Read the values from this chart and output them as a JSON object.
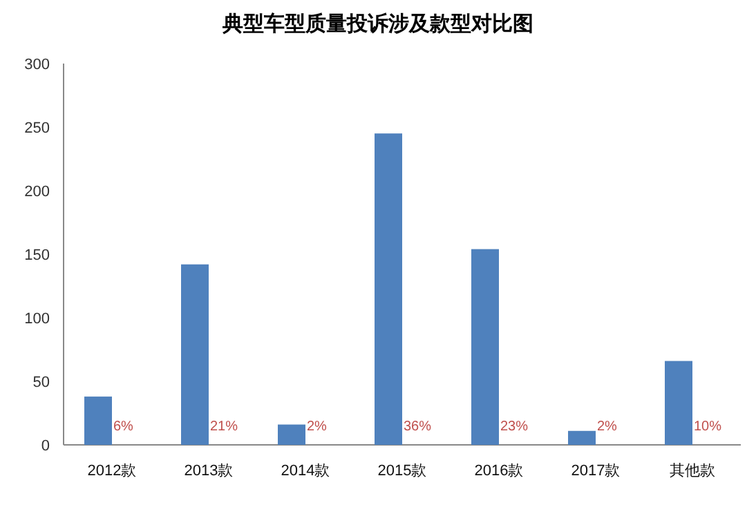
{
  "chart_data": {
    "type": "bar",
    "title": "典型车型质量投诉涉及款型对比图",
    "categories": [
      "2012款",
      "2013款",
      "2014款",
      "2015款",
      "2016款",
      "2017款",
      "其他款"
    ],
    "values": [
      38,
      142,
      16,
      245,
      154,
      11,
      66
    ],
    "color": "#4f81bd",
    "ylim": [
      0,
      300
    ],
    "yticks": [
      0,
      50,
      100,
      150,
      200,
      250,
      300
    ],
    "grid": false,
    "annotations": [
      {
        "text": "6%",
        "x": "2012款",
        "y": 16
      },
      {
        "text": "21%",
        "x": "2013款",
        "y": 16
      },
      {
        "text": "2%",
        "x": "2014款",
        "y": 16
      },
      {
        "text": "36%",
        "x": "2015款",
        "y": 16
      },
      {
        "text": "23%",
        "x": "2016款",
        "y": 16
      },
      {
        "text": "2%",
        "x": "2017款",
        "y": 16
      },
      {
        "text": "10%",
        "x": "其他款",
        "y": 16
      }
    ]
  }
}
